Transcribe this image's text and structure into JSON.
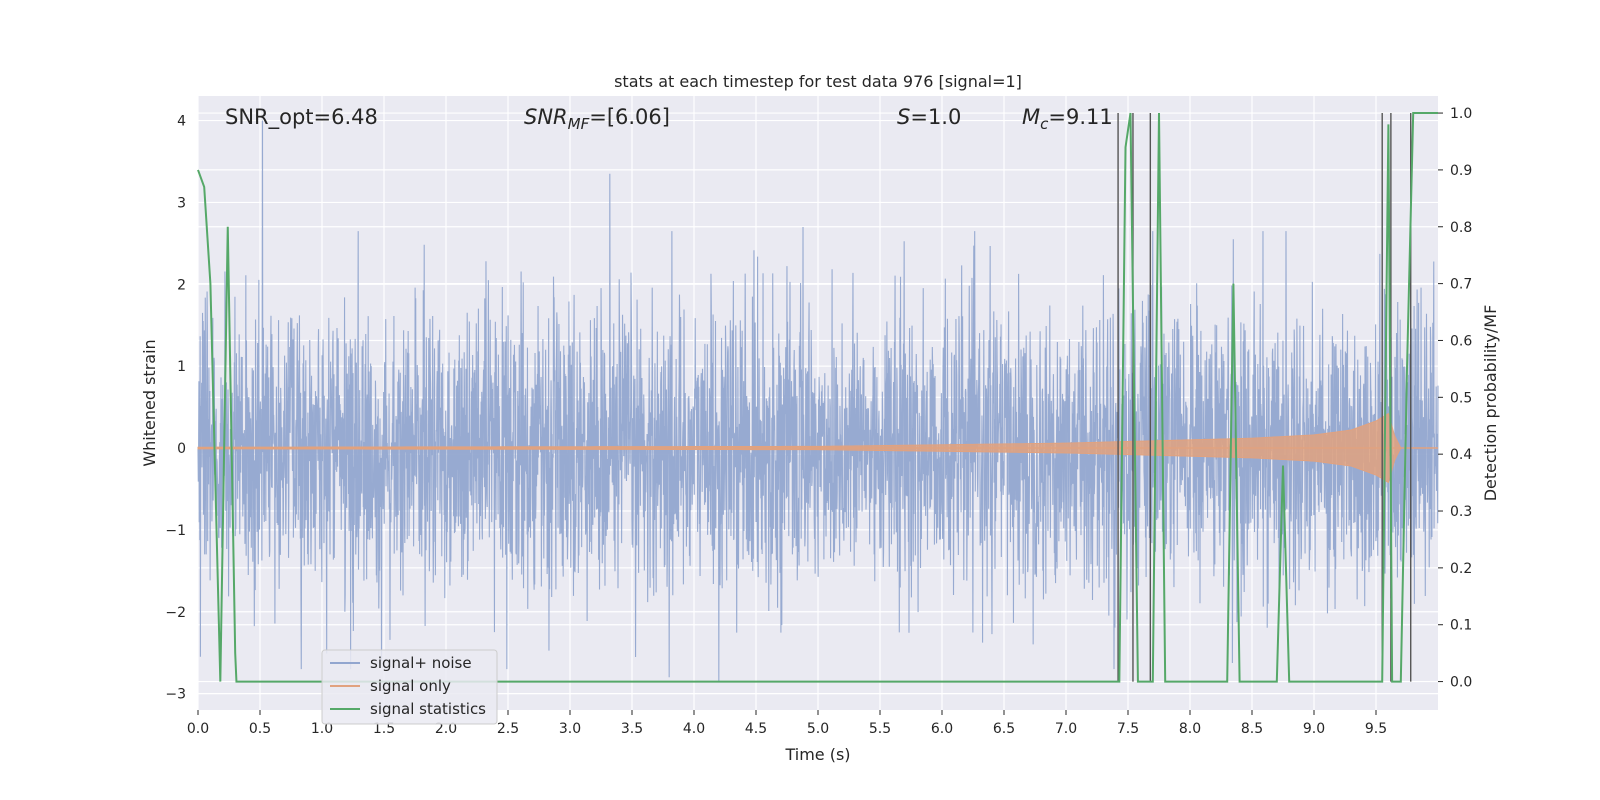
{
  "chart_data": {
    "type": "line",
    "title": "stats at each timestep for test data 976 [signal=1]",
    "xlabel": "Time (s)",
    "ylabel": "Whitened strain",
    "ylabel_right": "Detection probability/MF",
    "xlim": [
      0.0,
      10.0
    ],
    "ylim": [
      -3.2,
      4.3
    ],
    "ylim_right": [
      -0.05,
      1.03
    ],
    "xticks": [
      "0.0",
      "0.5",
      "1.0",
      "1.5",
      "2.0",
      "2.5",
      "3.0",
      "3.5",
      "4.0",
      "4.5",
      "5.0",
      "5.5",
      "6.0",
      "6.5",
      "7.0",
      "7.5",
      "8.0",
      "8.5",
      "9.0",
      "9.5"
    ],
    "xtick_values": [
      0.0,
      0.5,
      1.0,
      1.5,
      2.0,
      2.5,
      3.0,
      3.5,
      4.0,
      4.5,
      5.0,
      5.5,
      6.0,
      6.5,
      7.0,
      7.5,
      8.0,
      8.5,
      9.0,
      9.5
    ],
    "yticks": [
      "−3",
      "−2",
      "−1",
      "0",
      "1",
      "2",
      "3",
      "4"
    ],
    "ytick_values": [
      -3,
      -2,
      -1,
      0,
      1,
      2,
      3,
      4
    ],
    "yticks_right": [
      "0.0",
      "0.1",
      "0.2",
      "0.3",
      "0.4",
      "0.5",
      "0.6",
      "0.7",
      "0.8",
      "0.9",
      "1.0"
    ],
    "ytick_values_right": [
      0.0,
      0.1,
      0.2,
      0.3,
      0.4,
      0.5,
      0.6,
      0.7,
      0.8,
      0.9,
      1.0
    ],
    "grid": true,
    "legend_position": "lower-left",
    "annotations": {
      "snr_opt": "SNR_opt=6.48",
      "snr_mf_label": "SNR",
      "snr_mf_sub": "MF",
      "snr_mf_value": "=[6.06]",
      "s_label": "S",
      "s_value": "=1.0",
      "mc_label": "M",
      "mc_sub": "c",
      "mc_value": "=9.11"
    },
    "series": [
      {
        "name": "signal+ noise",
        "color": "#92a6cf",
        "axis": "left",
        "noise_std": 0.85,
        "spikes": [
          [
            0.52,
            4.0
          ],
          [
            3.32,
            3.35
          ],
          [
            4.88,
            2.7
          ],
          [
            8.35,
            2.55
          ],
          [
            0.02,
            -2.55
          ],
          [
            4.2,
            -2.85
          ],
          [
            3.8,
            -2.8
          ],
          [
            1.48,
            -2.6
          ]
        ]
      },
      {
        "name": "signal only",
        "color": "#e1a27f",
        "axis": "left",
        "envelope": [
          [
            0.0,
            0.01
          ],
          [
            5.0,
            0.02
          ],
          [
            6.0,
            0.04
          ],
          [
            7.0,
            0.06
          ],
          [
            7.5,
            0.08
          ],
          [
            8.0,
            0.1
          ],
          [
            8.5,
            0.12
          ],
          [
            9.0,
            0.16
          ],
          [
            9.3,
            0.22
          ],
          [
            9.5,
            0.33
          ],
          [
            9.6,
            0.42
          ],
          [
            9.65,
            0.15
          ],
          [
            9.7,
            0.0
          ],
          [
            10.0,
            0.0
          ]
        ]
      },
      {
        "name": "signal statistics",
        "color": "#55a868",
        "axis": "right",
        "x": [
          0.0,
          0.05,
          0.1,
          0.18,
          0.24,
          0.3,
          0.31,
          7.43,
          7.48,
          7.52,
          7.58,
          7.62,
          7.67,
          7.7,
          7.75,
          7.8,
          7.82,
          8.3,
          8.35,
          8.4,
          8.45,
          8.7,
          8.75,
          8.8,
          8.85,
          9.55,
          9.6,
          9.63,
          9.66,
          9.7,
          9.75,
          9.8,
          9.82,
          10.0
        ],
        "y": [
          0.9,
          0.87,
          0.7,
          0.0,
          0.8,
          0.05,
          0.0,
          0.0,
          0.94,
          1.0,
          0.0,
          0.0,
          0.0,
          0.0,
          1.0,
          0.0,
          0.0,
          0.0,
          0.7,
          0.0,
          0.0,
          0.0,
          0.38,
          0.0,
          0.0,
          0.0,
          0.98,
          0.0,
          0.0,
          0.0,
          0.55,
          1.0,
          1.0,
          1.0
        ]
      },
      {
        "name": "",
        "color": "#555555",
        "axis": "right",
        "type": "vlines",
        "x": [
          7.42,
          7.54,
          7.68,
          9.55,
          9.62,
          9.78
        ]
      }
    ]
  }
}
